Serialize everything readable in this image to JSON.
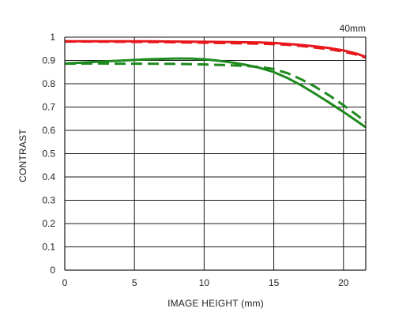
{
  "chart_data": {
    "type": "line",
    "title": "",
    "annotation": "40mm",
    "xlabel": "IMAGE HEIGHT (mm)",
    "ylabel": "CONTRAST",
    "xlim": [
      0,
      21.6
    ],
    "ylim": [
      0,
      1
    ],
    "xticks": [
      0,
      5,
      10,
      15,
      20
    ],
    "yticks": [
      0,
      0.1,
      0.2,
      0.3,
      0.4,
      0.5,
      0.6,
      0.7,
      0.8,
      0.9,
      1
    ],
    "ytick_labels": [
      "0",
      "0.1",
      "0.2",
      "0.3",
      "0.4",
      "0.5",
      "0.6",
      "0.7",
      "0.8",
      "0.9",
      "1"
    ],
    "grid": true,
    "legend": "none",
    "series": [
      {
        "color": "#e8161b",
        "style": "solid",
        "x": [
          0,
          2,
          4,
          6,
          8,
          10,
          12,
          14,
          15,
          16,
          17,
          18,
          19,
          20,
          21,
          21.6
        ],
        "y": [
          0.982,
          0.982,
          0.982,
          0.982,
          0.981,
          0.98,
          0.979,
          0.977,
          0.975,
          0.971,
          0.966,
          0.96,
          0.953,
          0.943,
          0.928,
          0.915
        ]
      },
      {
        "color": "#e8161b",
        "style": "dashed",
        "x": [
          0,
          2,
          4,
          6,
          8,
          10,
          12,
          14,
          15,
          16,
          17,
          18,
          19,
          20,
          21,
          21.6
        ],
        "y": [
          0.981,
          0.981,
          0.98,
          0.979,
          0.978,
          0.976,
          0.974,
          0.972,
          0.97,
          0.967,
          0.962,
          0.955,
          0.948,
          0.938,
          0.924,
          0.912
        ]
      },
      {
        "color": "#1e8a1e",
        "style": "solid",
        "x": [
          0,
          1,
          2,
          3,
          4,
          5,
          6,
          7,
          8,
          9,
          10,
          11,
          12,
          13,
          14,
          15,
          16,
          17,
          18,
          19,
          20,
          21,
          21.6
        ],
        "y": [
          0.887,
          0.89,
          0.893,
          0.896,
          0.899,
          0.902,
          0.905,
          0.907,
          0.908,
          0.908,
          0.905,
          0.899,
          0.891,
          0.881,
          0.868,
          0.85,
          0.824,
          0.792,
          0.756,
          0.718,
          0.679,
          0.638,
          0.613
        ]
      },
      {
        "color": "#1e8a1e",
        "style": "dashed",
        "x": [
          0,
          2,
          4,
          6,
          8,
          10,
          11,
          12,
          13,
          14,
          15,
          16,
          17,
          18,
          19,
          20,
          21,
          21.6
        ],
        "y": [
          0.886,
          0.887,
          0.886,
          0.886,
          0.885,
          0.883,
          0.881,
          0.879,
          0.876,
          0.872,
          0.863,
          0.845,
          0.818,
          0.786,
          0.749,
          0.708,
          0.664,
          0.635
        ]
      }
    ]
  }
}
